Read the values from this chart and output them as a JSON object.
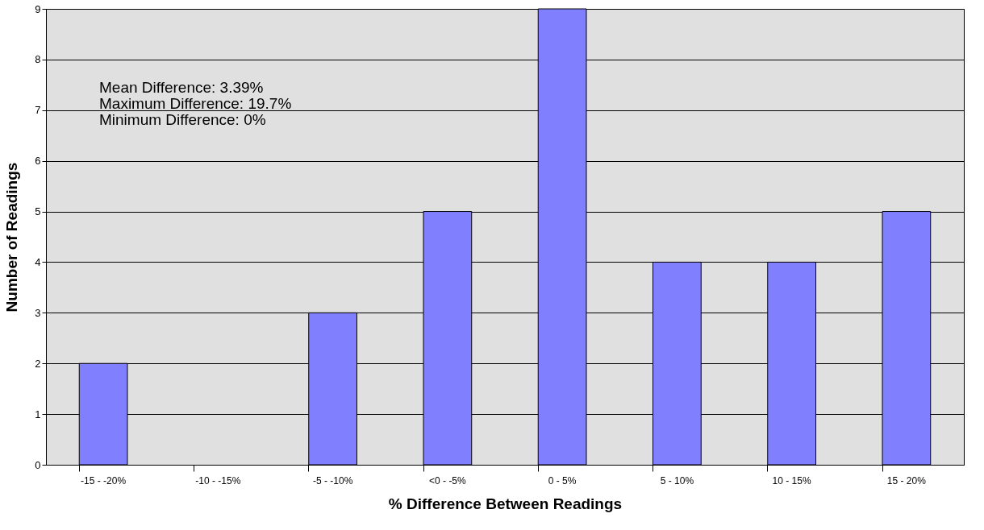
{
  "chart_data": {
    "type": "bar",
    "xlabel": "% Difference Between Readings",
    "ylabel": "Number of Readings",
    "categories": [
      "-15 - -20%",
      "-10 - -15%",
      "-5 - -10%",
      "<0 - -5%",
      "0 - 5%",
      "5 - 10%",
      "10 - 15%",
      "15 - 20%"
    ],
    "values": [
      2,
      0,
      3,
      5,
      9,
      4,
      4,
      5
    ],
    "color": "#8080ff",
    "ylim": [
      0,
      9
    ],
    "yticks": [
      0,
      1,
      2,
      3,
      4,
      5,
      6,
      7,
      8,
      9
    ],
    "grid": "y",
    "annotations": [
      "Mean Difference:  3.39%",
      "Maximum Difference: 19.7%",
      "Minimum Difference: 0%"
    ]
  }
}
